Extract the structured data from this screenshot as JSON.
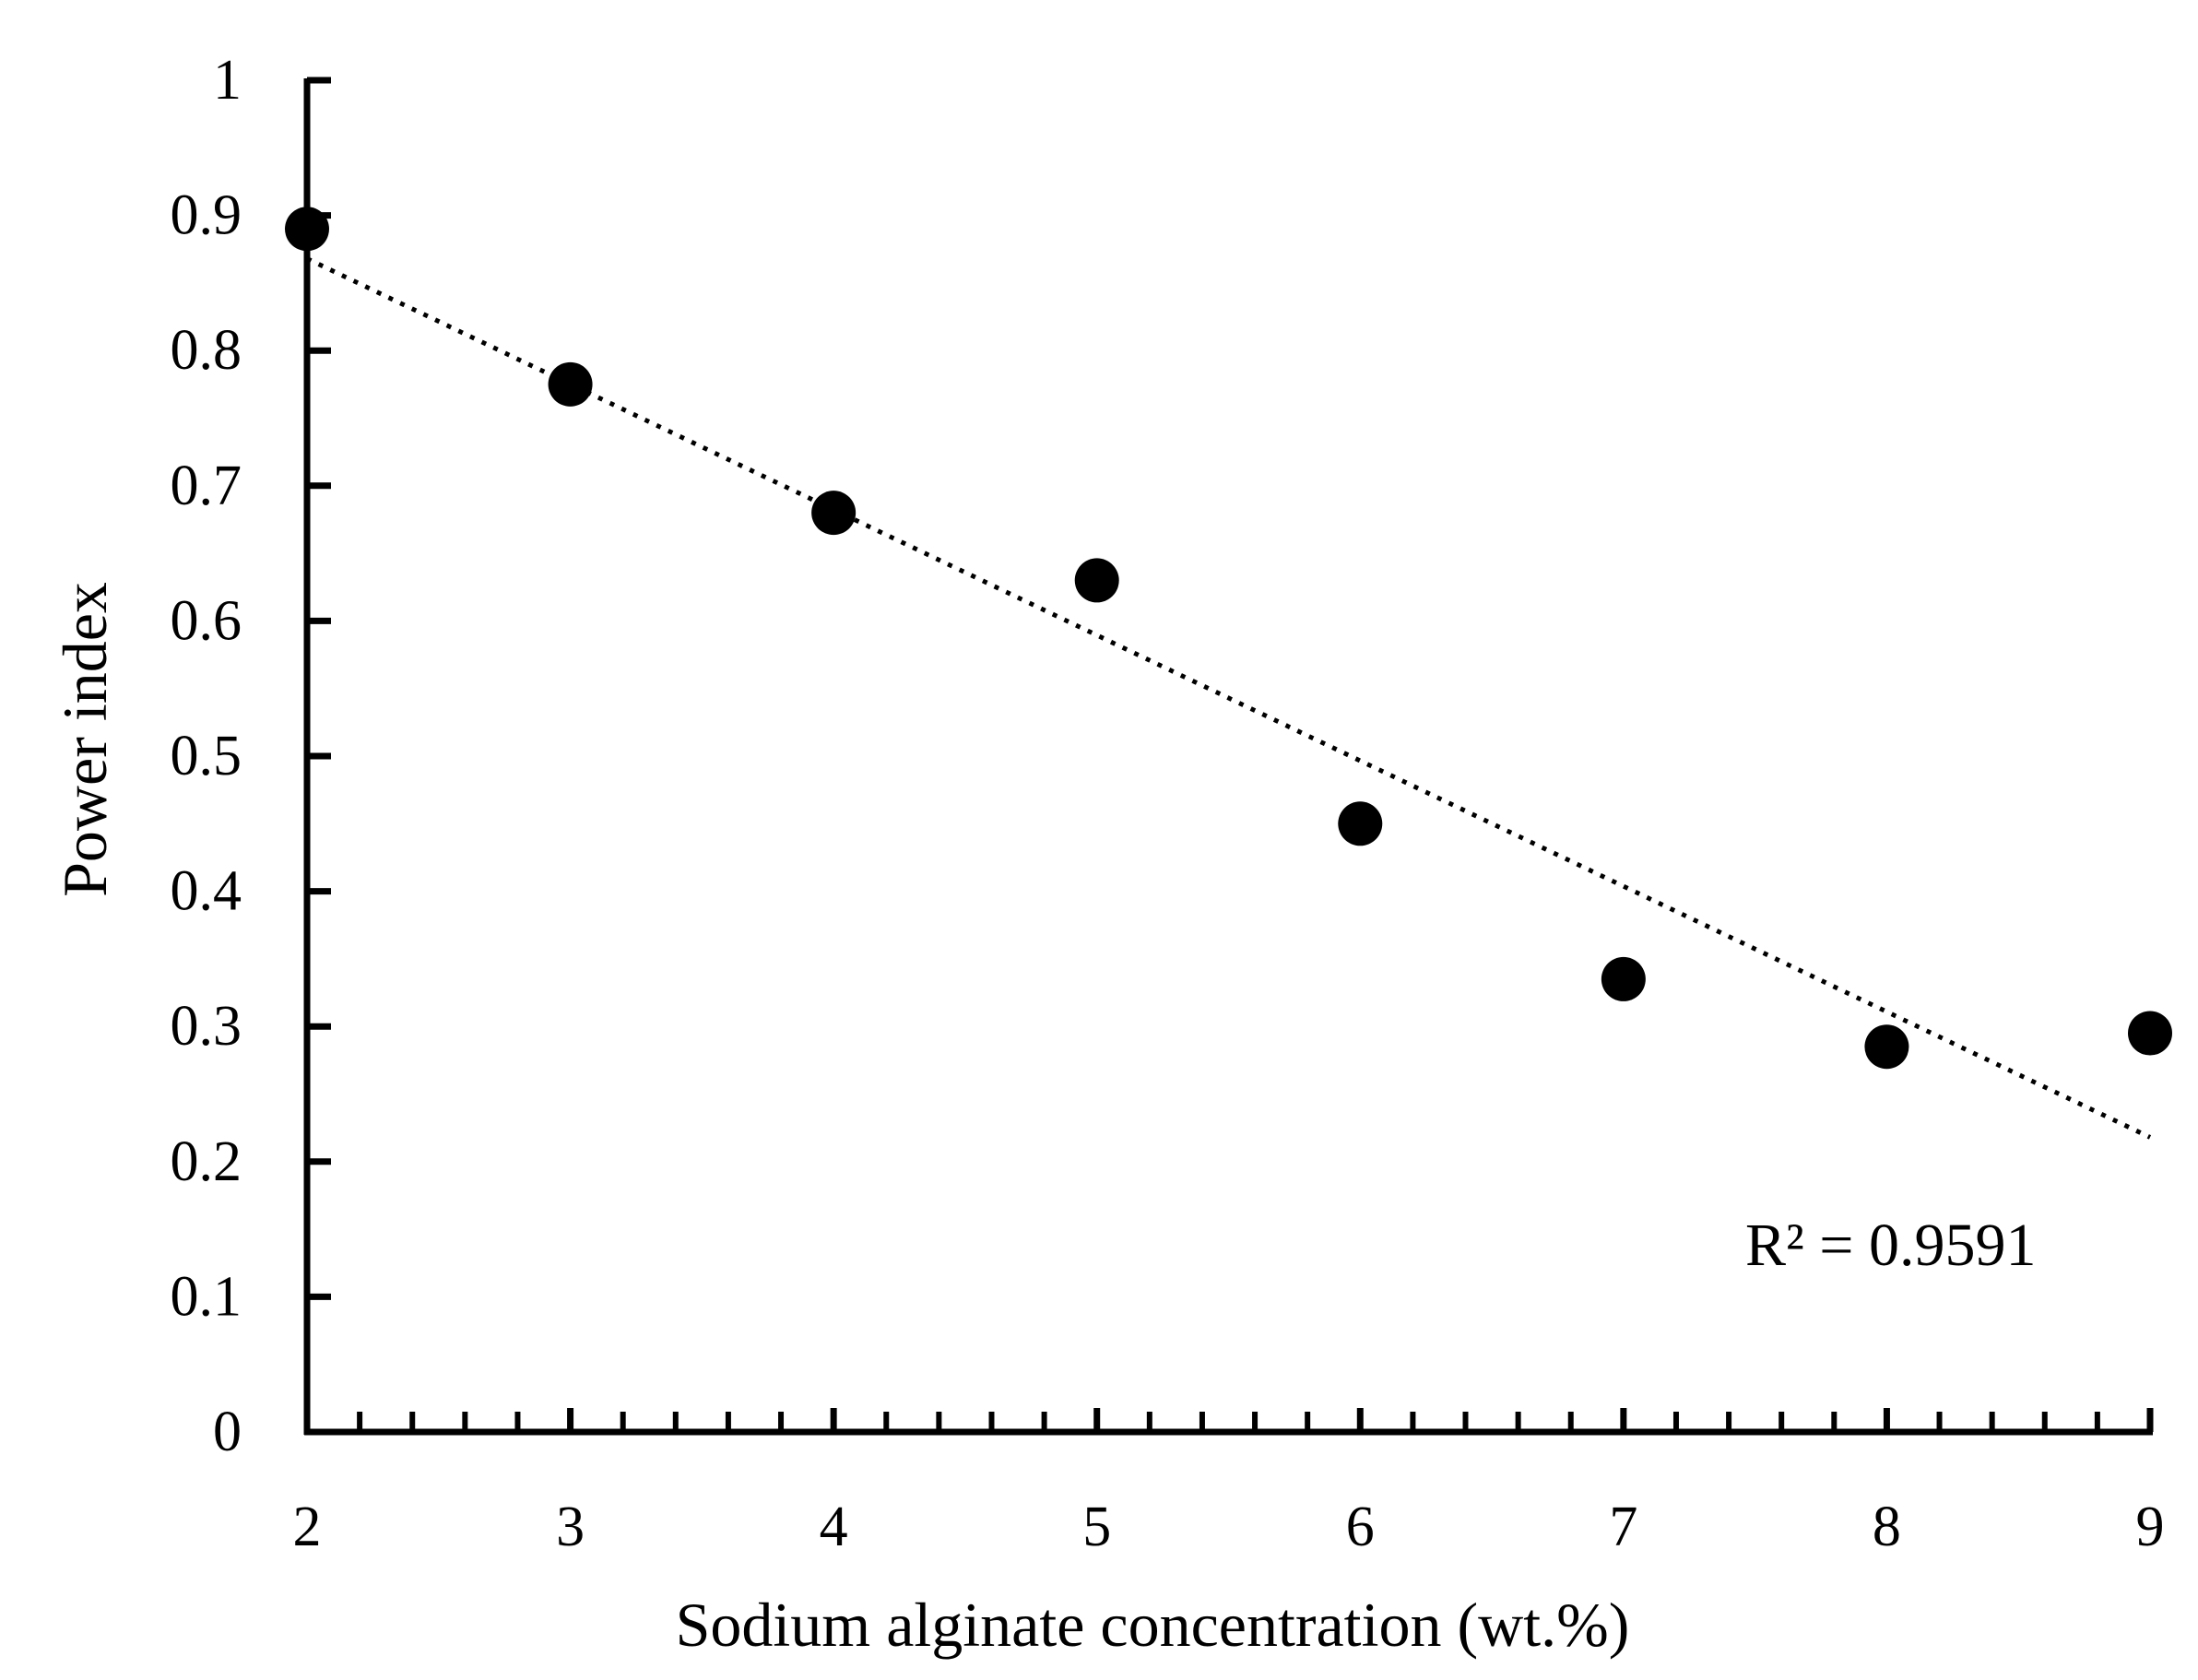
{
  "chart_data": {
    "type": "scatter",
    "xlabel": "Sodium alginate concentration (wt.%)",
    "ylabel": "Power index",
    "xlim": [
      2,
      9
    ],
    "ylim": [
      0,
      1
    ],
    "x_ticks": [
      2,
      3,
      4,
      5,
      6,
      7,
      8,
      9
    ],
    "x_tick_labels": [
      "2",
      "3",
      "4",
      "5",
      "6",
      "7",
      "8",
      "9"
    ],
    "y_ticks": [
      0,
      0.1,
      0.2,
      0.3,
      0.4,
      0.5,
      0.6,
      0.7,
      0.8,
      0.9,
      1
    ],
    "y_tick_labels": [
      "0",
      "0.1",
      "0.2",
      "0.3",
      "0.4",
      "0.5",
      "0.6",
      "0.7",
      "0.8",
      "0.9",
      "1"
    ],
    "x_minor_ticks_per_major": 5,
    "grid": false,
    "series": [
      {
        "x": [
          2,
          3,
          4,
          5,
          6,
          7,
          8,
          9
        ],
        "y": [
          0.89,
          0.775,
          0.68,
          0.63,
          0.45,
          0.335,
          0.285,
          0.295
        ],
        "marker": "circle",
        "color": "#000000"
      }
    ],
    "trendline": {
      "style": "dotted",
      "color": "#000000",
      "x": [
        2,
        9
      ],
      "y": [
        0.868,
        0.218
      ]
    },
    "annotations": [
      {
        "text": "R² = 0.9591"
      }
    ]
  }
}
